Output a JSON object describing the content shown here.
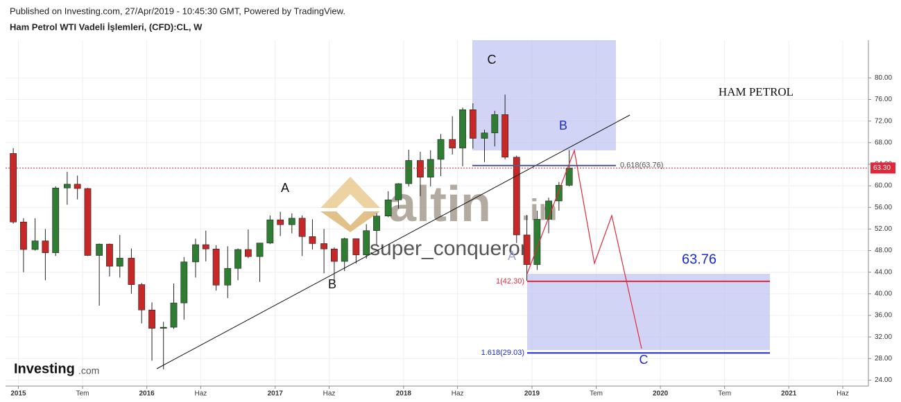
{
  "header": {
    "published": "Published on Investing.com, 27/Apr/2019 - 10:45:30 GMT, Powered by TradingView.",
    "title": "Ham Petrol WTI Vadeli İşlemleri, (CFD):CL, W"
  },
  "chart_data": {
    "type": "candlestick",
    "x": [
      2014.96,
      2015.04,
      2015.13,
      2015.21,
      2015.29,
      2015.38,
      2015.46,
      2015.54,
      2015.63,
      2015.71,
      2015.79,
      2015.88,
      2015.96,
      2016.04,
      2016.13,
      2016.21,
      2016.29,
      2016.38,
      2016.46,
      2016.54,
      2016.63,
      2016.71,
      2016.79,
      2016.88,
      2016.96,
      2017.04,
      2017.13,
      2017.21,
      2017.29,
      2017.38,
      2017.46,
      2017.54,
      2017.63,
      2017.71,
      2017.79,
      2017.88,
      2017.96,
      2018.04,
      2018.13,
      2018.21,
      2018.29,
      2018.38,
      2018.46,
      2018.54,
      2018.63,
      2018.71,
      2018.79,
      2018.88,
      2018.96,
      2019.04,
      2019.13,
      2019.21,
      2019.29
    ],
    "open": [
      66,
      53.3,
      48.2,
      49.8,
      47.6,
      59.6,
      60.3,
      59.5,
      47.1,
      49.2,
      45.1,
      46.6,
      41.7,
      37,
      33.6,
      33.8,
      38.3,
      45.9,
      49.1,
      48.3,
      41.6,
      44.7,
      48.2,
      46.9,
      49.4,
      53.7,
      52.8,
      54,
      50.6,
      49.3,
      48.3,
      46,
      50.2,
      47.2,
      51.7,
      54.4,
      57.4,
      60.4,
      64.7,
      61.6,
      64.9,
      68.6,
      67,
      74.1,
      68.8,
      69.8,
      73.2,
      65.3,
      50.9,
      45.4,
      53.8,
      57.2,
      60.1
    ],
    "high": [
      67,
      54,
      54,
      52,
      59.9,
      62.6,
      61.9,
      59.6,
      49.3,
      49.3,
      50.9,
      48.4,
      42,
      38.4,
      34.8,
      41.9,
      46.8,
      50.2,
      51.7,
      49,
      48.8,
      48.4,
      51.9,
      49.4,
      54.5,
      55.2,
      54.9,
      54.5,
      53.8,
      52,
      48.6,
      50.4,
      50.2,
      52.9,
      54.9,
      59,
      60.5,
      66.7,
      66.3,
      66.6,
      69.6,
      72.9,
      74.5,
      75.3,
      70.4,
      73.9,
      76.9,
      65.6,
      54.6,
      55.4,
      57.8,
      60.7,
      66.6
    ],
    "low": [
      53,
      44,
      48,
      42.5,
      47,
      56.5,
      57.5,
      47,
      37.8,
      43.2,
      43,
      40,
      34.5,
      27.6,
      26,
      33.5,
      35.2,
      43,
      46,
      40.6,
      39.2,
      42.5,
      46.6,
      42.2,
      49.2,
      50.7,
      51.2,
      47,
      48.2,
      43.8,
      42,
      44.2,
      45.6,
      46.5,
      49.1,
      54.2,
      55.8,
      59.9,
      58.1,
      59.9,
      61.8,
      65.8,
      63.6,
      66.9,
      64.4,
      67.3,
      64.9,
      49.4,
      42.4,
      44.4,
      51.2,
      55.4,
      59.9
    ],
    "close": [
      53.3,
      48.2,
      49.8,
      47.6,
      59.6,
      60.3,
      59.5,
      47.1,
      49.2,
      45.1,
      46.6,
      41.7,
      37,
      33.6,
      33.8,
      38.3,
      45.9,
      49.1,
      48.3,
      41.6,
      44.7,
      48.2,
      46.9,
      49.4,
      53.7,
      52.8,
      54,
      50.6,
      49.3,
      48.3,
      46,
      50.2,
      47.2,
      51.7,
      54.4,
      57.4,
      60.4,
      64.7,
      61.6,
      64.9,
      68.6,
      67,
      74.1,
      68.8,
      69.8,
      73.2,
      65.3,
      50.9,
      45.4,
      53.8,
      57.2,
      60.1,
      63.3
    ],
    "up_color": "#2e7d32",
    "down_color": "#c62828",
    "xlim": [
      2014.9,
      2021.62
    ],
    "ylim": [
      22.9,
      86.98
    ],
    "xticks": [
      2015,
      {
        "value": 2015.5,
        "label": "Tem"
      },
      2016,
      {
        "value": 2016.42,
        "label": "Haz"
      },
      2017,
      {
        "value": 2017.42,
        "label": "Haz"
      },
      2018,
      {
        "value": 2018.42,
        "label": "Haz"
      },
      2019,
      {
        "value": 2019.5,
        "label": "Tem"
      },
      2020,
      {
        "value": 2020.5,
        "label": "Tem"
      },
      2021,
      {
        "value": 2021.42,
        "label": "Haz"
      }
    ],
    "yticks": [
      {
        "value": 24,
        "label": "24.00"
      },
      {
        "value": 28,
        "label": "28.00"
      },
      {
        "value": 32,
        "label": "32.00"
      },
      {
        "value": 36,
        "label": "36.00"
      },
      {
        "value": 40,
        "label": "40.00"
      },
      {
        "value": 44,
        "label": "44.00"
      },
      {
        "value": 48,
        "label": "48.00"
      },
      {
        "value": 52,
        "label": "52.00"
      },
      {
        "value": 56,
        "label": "56.00"
      },
      {
        "value": 60,
        "label": "60.00"
      },
      {
        "value": 64,
        "label": "64.00"
      },
      {
        "value": 68,
        "label": "68.00"
      },
      {
        "value": 72,
        "label": "72.00"
      },
      {
        "value": 76,
        "label": "76.00"
      },
      {
        "value": 80,
        "label": "80.00"
      }
    ],
    "grid": true,
    "last_price": {
      "value": 63.3,
      "label": "63.30",
      "color": "#e0283c"
    },
    "fib_levels": [
      {
        "value": 63.76,
        "label": "0.618(63.76)",
        "color": "#555a8c"
      },
      {
        "value": 42.3,
        "label": "1(42.30)",
        "color": "#e0283c"
      },
      {
        "value": 29.03,
        "label": "1.618(29.03)",
        "color": "#1a2ad0"
      }
    ],
    "annotations": [
      "A",
      "B",
      "C",
      "B",
      "A",
      "C",
      "HAM PETROL",
      "63.76"
    ]
  },
  "watermark": {
    "brand": "altin",
    "suffix": ".in",
    "author": "super_conqueror"
  },
  "logo": {
    "name": "Investing",
    "suffix": ".com"
  }
}
